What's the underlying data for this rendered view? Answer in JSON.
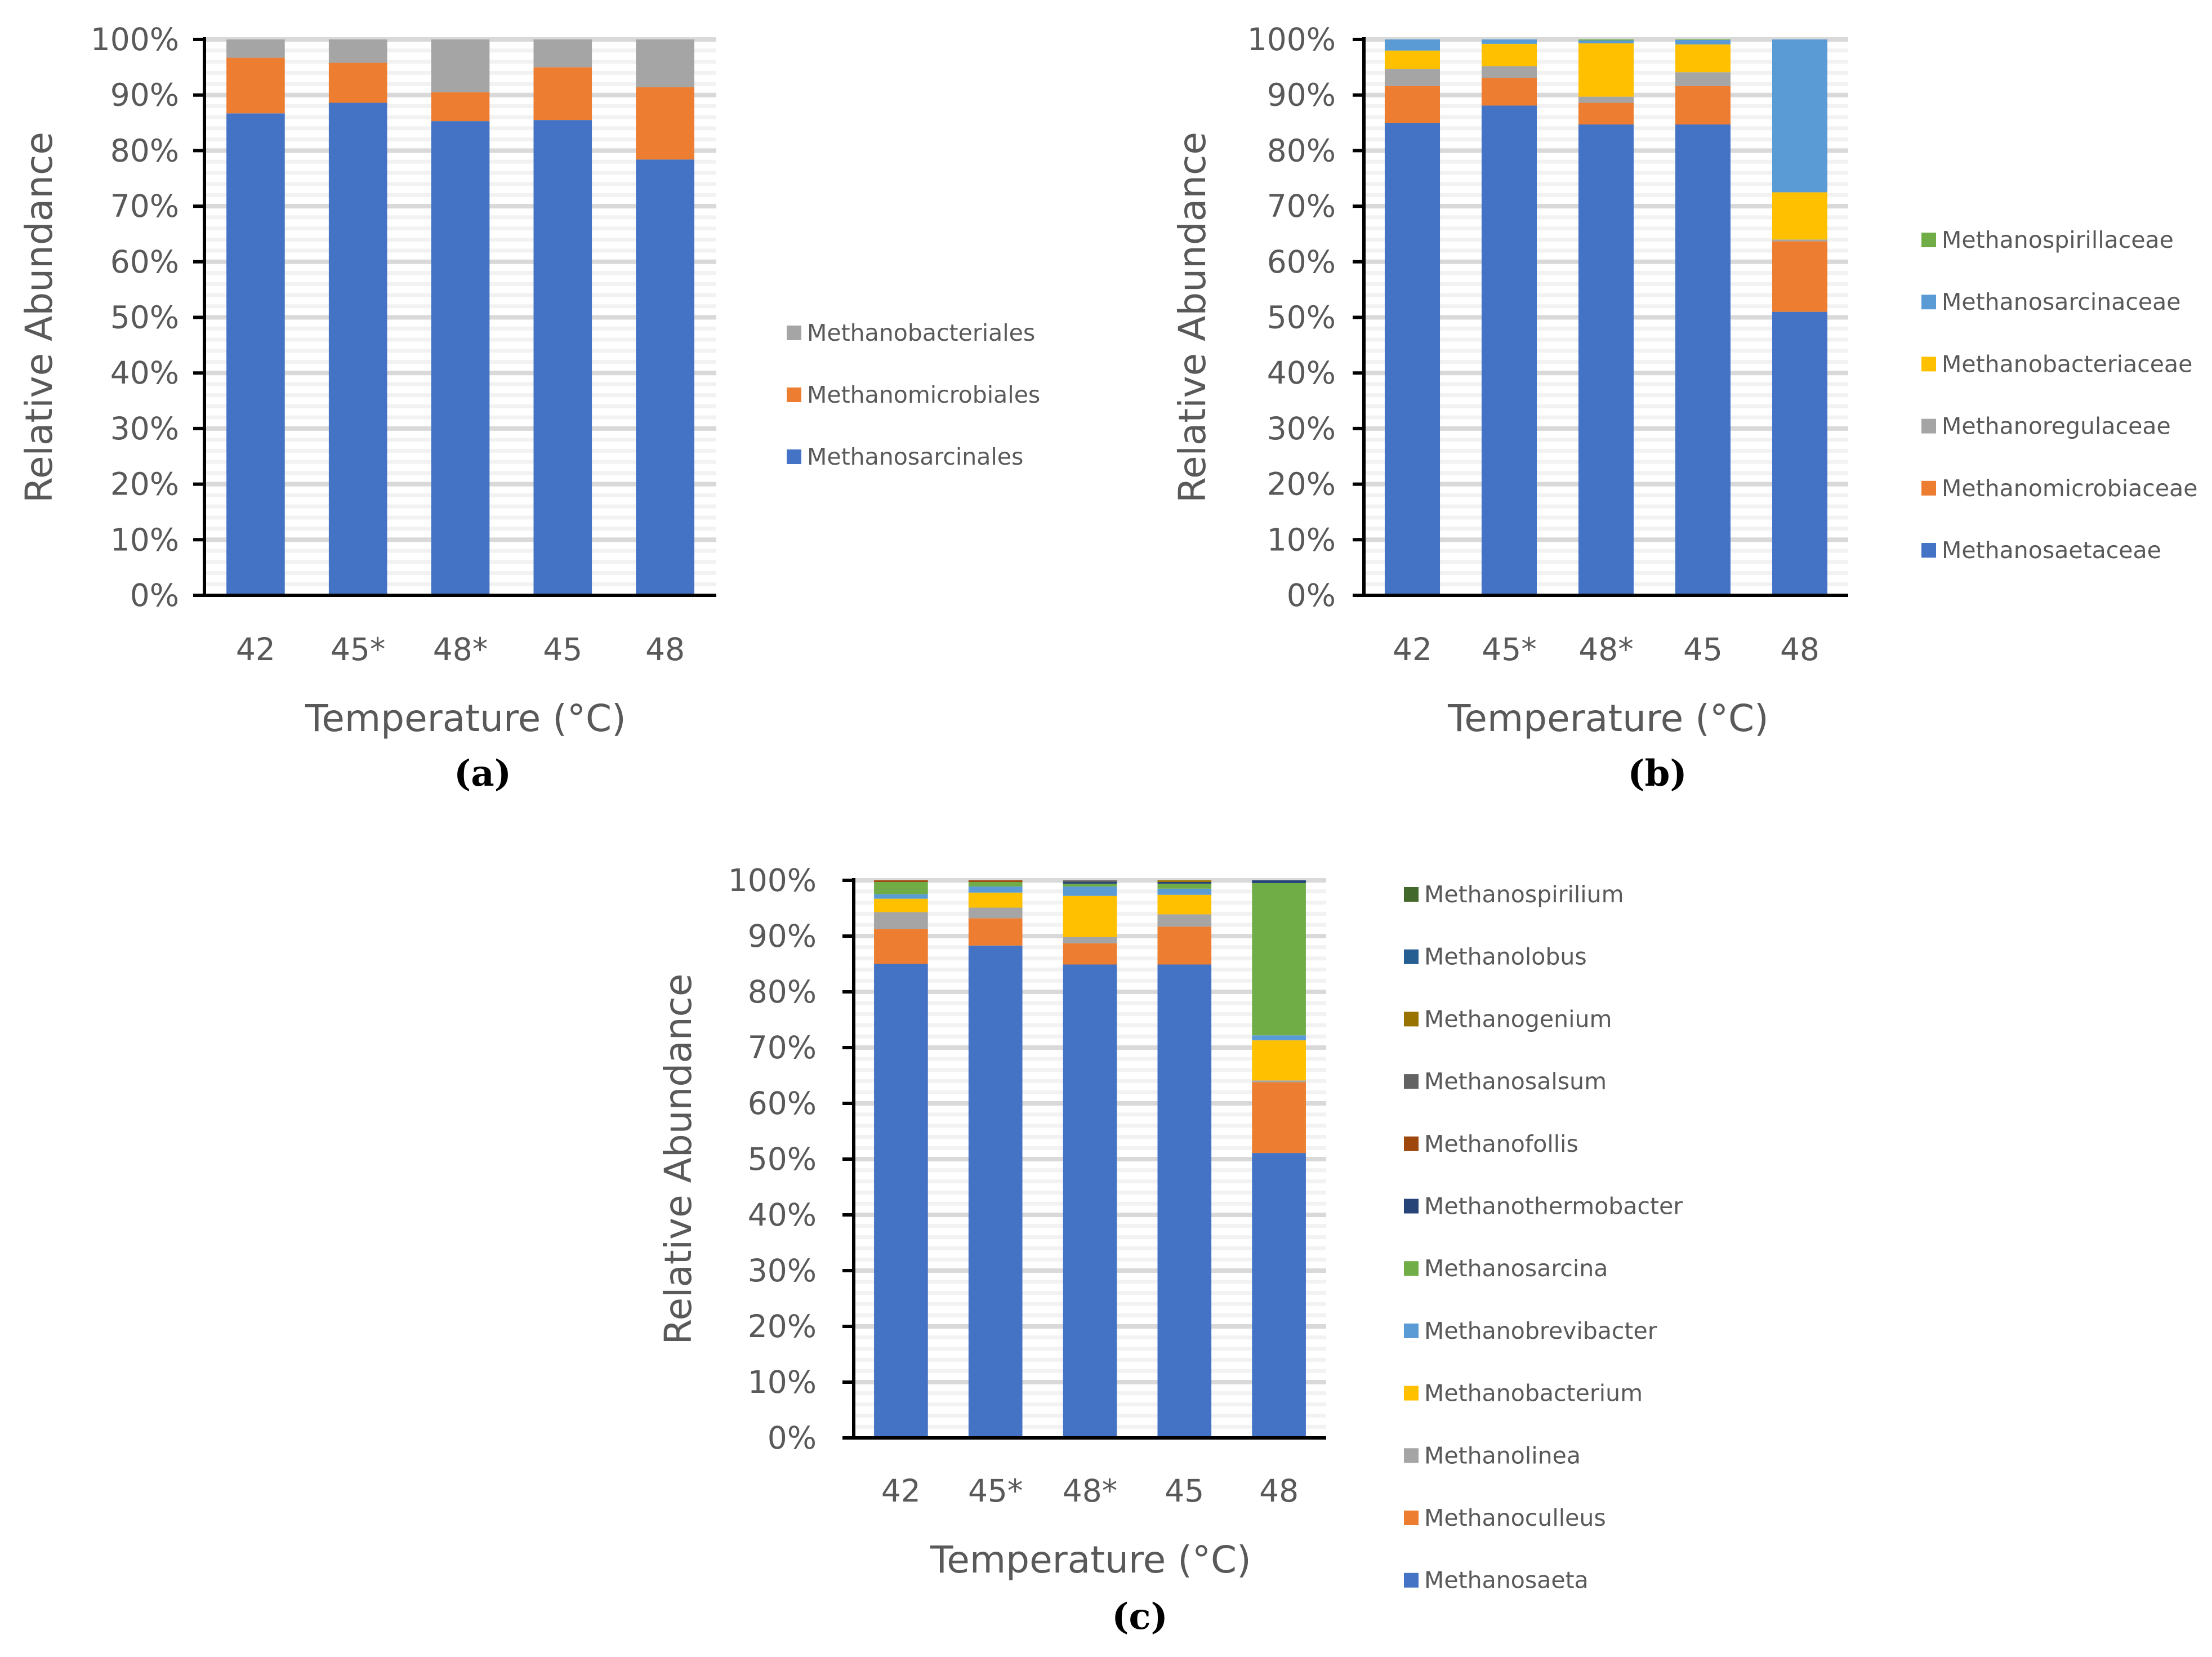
{
  "chart_data": [
    {
      "type": "bar",
      "stacked": true,
      "panel_label": "(a)",
      "categories": [
        "42",
        "45*",
        "48*",
        "45",
        "48"
      ],
      "xlabel": "Temperature (°C)",
      "ylabel": "Relative Abundance",
      "ylim": [
        0,
        100
      ],
      "yticks": [
        "0%",
        "10%",
        "20%",
        "30%",
        "40%",
        "50%",
        "60%",
        "70%",
        "80%",
        "90%",
        "100%"
      ],
      "grid": true,
      "legend": "right",
      "series": [
        {
          "name": "Methanosarcinales",
          "color": "#4472c4",
          "values": [
            86.7,
            88.6,
            85.3,
            85.5,
            78.4
          ]
        },
        {
          "name": "Methanomicrobiales",
          "color": "#ed7d31",
          "values": [
            10.0,
            7.2,
            5.2,
            9.5,
            13.0
          ]
        },
        {
          "name": "Methanobacteriales",
          "color": "#a5a5a5",
          "values": [
            3.3,
            4.2,
            9.5,
            5.0,
            8.6
          ]
        }
      ]
    },
    {
      "type": "bar",
      "stacked": true,
      "panel_label": "(b)",
      "categories": [
        "42",
        "45*",
        "48*",
        "45",
        "48"
      ],
      "xlabel": "Temperature (°C)",
      "ylabel": "Relative Abundance",
      "ylim": [
        0,
        100
      ],
      "yticks": [
        "0%",
        "10%",
        "20%",
        "30%",
        "40%",
        "50%",
        "60%",
        "70%",
        "80%",
        "90%",
        "100%"
      ],
      "grid": true,
      "legend": "right",
      "series": [
        {
          "name": "Methanosaetaceae",
          "color": "#4472c4",
          "values": [
            85.0,
            88.1,
            84.7,
            84.7,
            51.0
          ]
        },
        {
          "name": "Methanomicrobiaceae",
          "color": "#ed7d31",
          "values": [
            6.6,
            5.0,
            3.9,
            6.9,
            12.7
          ]
        },
        {
          "name": "Methanoregulaceae",
          "color": "#a5a5a5",
          "values": [
            3.1,
            2.1,
            1.1,
            2.5,
            0.3
          ]
        },
        {
          "name": "Methanobacteriaceae",
          "color": "#ffc000",
          "values": [
            3.3,
            4.0,
            9.6,
            5.0,
            8.5
          ]
        },
        {
          "name": "Methanosarcinaceae",
          "color": "#5b9bd5",
          "values": [
            2.0,
            0.8,
            0.5,
            0.8,
            27.5
          ]
        },
        {
          "name": "Methanospirillaceae",
          "color": "#70ad47",
          "values": [
            0,
            0,
            0.2,
            0.1,
            0
          ]
        }
      ]
    },
    {
      "type": "bar",
      "stacked": true,
      "panel_label": "(c)",
      "categories": [
        "42",
        "45*",
        "48*",
        "45",
        "48"
      ],
      "xlabel": "Temperature (°C)",
      "ylabel": "Relative Abundance",
      "ylim": [
        0,
        100
      ],
      "yticks": [
        "0%",
        "10%",
        "20%",
        "30%",
        "40%",
        "50%",
        "60%",
        "70%",
        "80%",
        "90%",
        "100%"
      ],
      "grid": true,
      "legend": "right",
      "series": [
        {
          "name": "Methanosaeta",
          "color": "#4472c4",
          "values": [
            85.0,
            88.3,
            84.9,
            84.9,
            51.1
          ]
        },
        {
          "name": "Methanoculleus",
          "color": "#ed7d31",
          "values": [
            6.3,
            4.9,
            3.8,
            6.8,
            12.7
          ]
        },
        {
          "name": "Methanolinea",
          "color": "#a5a5a5",
          "values": [
            3.0,
            1.9,
            1.1,
            2.2,
            0.3
          ]
        },
        {
          "name": "Methanobacterium",
          "color": "#ffc000",
          "values": [
            2.4,
            2.7,
            7.4,
            3.5,
            7.2
          ]
        },
        {
          "name": "Methanobrevibacter",
          "color": "#5b9bd5",
          "values": [
            0.8,
            1.1,
            1.7,
            1.1,
            0.9
          ]
        },
        {
          "name": "Methanosarcina",
          "color": "#70ad47",
          "values": [
            2.2,
            0.8,
            0.5,
            0.9,
            27.3
          ]
        },
        {
          "name": "Methanothermobacter",
          "color": "#264478",
          "values": [
            0,
            0,
            0.3,
            0.3,
            0.5
          ]
        },
        {
          "name": "Methanofollis",
          "color": "#9e480e",
          "values": [
            0.3,
            0.3,
            0,
            0,
            0
          ]
        },
        {
          "name": "Methanosalsum",
          "color": "#636363",
          "values": [
            0,
            0,
            0.3,
            0,
            0
          ]
        },
        {
          "name": "Methanogenium",
          "color": "#997300",
          "values": [
            0,
            0,
            0,
            0.3,
            0
          ]
        },
        {
          "name": "Methanolobus",
          "color": "#255e91",
          "values": [
            0,
            0,
            0,
            0,
            0
          ]
        },
        {
          "name": "Methanospirilium",
          "color": "#43682b",
          "values": [
            0,
            0,
            0,
            0,
            0
          ]
        }
      ]
    }
  ]
}
